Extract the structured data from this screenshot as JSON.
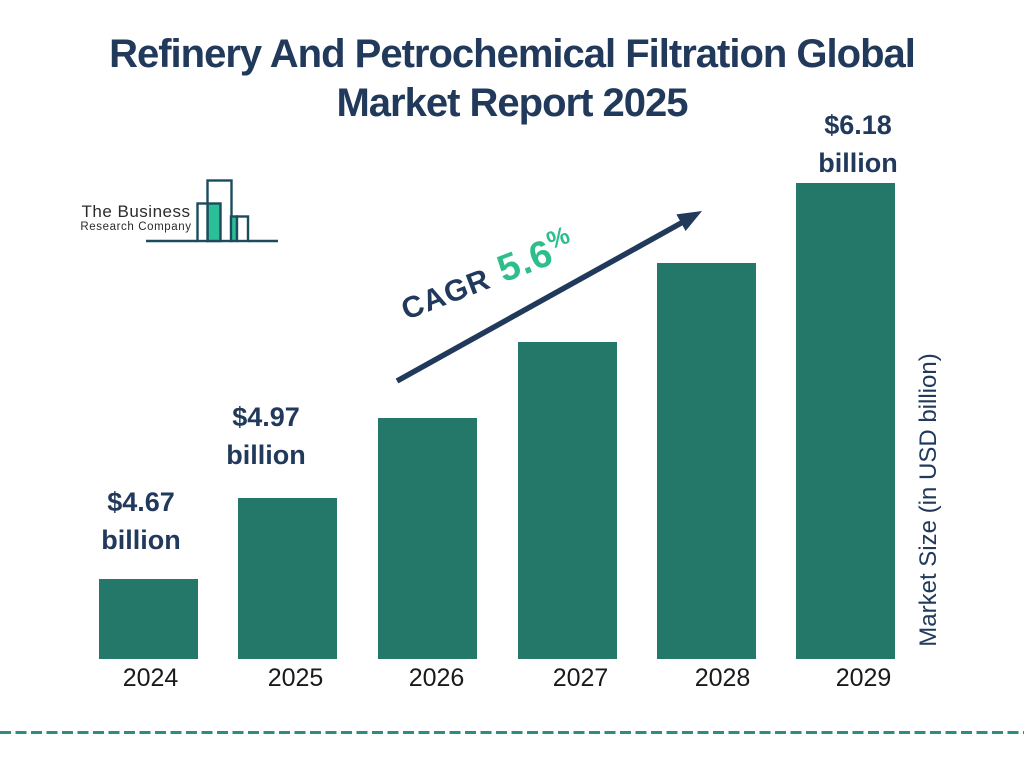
{
  "title": {
    "line1": "Refinery And Petrochemical Filtration Global",
    "line2": "Market Report 2025"
  },
  "logo": {
    "name": "The Business",
    "subname": "Research Company"
  },
  "annotation": {
    "label": "CAGR",
    "value": "5.6",
    "unit": "%"
  },
  "y_axis_label": "Market Size (in USD billion)",
  "colors": {
    "navy": "#21395b",
    "bar_teal": "#23786a",
    "accent_green": "#2ebe8c",
    "dashed_teal": "#2e8c86",
    "year_text": "#1a1a1a",
    "logo_outline": "#1d4b5e",
    "logo_teal": "#2abf97",
    "logo_text": "#2b2b2b"
  },
  "chart_data": {
    "type": "bar",
    "title": "Refinery And Petrochemical Filtration Global Market Report 2025",
    "categories": [
      "2024",
      "2025",
      "2026",
      "2027",
      "2028",
      "2029"
    ],
    "values": [
      4.67,
      4.97,
      5.25,
      5.54,
      5.85,
      6.18
    ],
    "values_unit": "USD billion",
    "ylabel": "Market Size (in USD billion)",
    "annotation": "CAGR 5.6%",
    "grid": false,
    "legend": false,
    "bars": [
      {
        "category": "2024",
        "value": 4.67,
        "label_line1": "$4.67",
        "label_line2": "billion"
      },
      {
        "category": "2025",
        "value": 4.97,
        "label_line1": "$4.97",
        "label_line2": "billion"
      },
      {
        "category": "2026",
        "value": 5.25,
        "label_line1": null,
        "label_line2": null
      },
      {
        "category": "2027",
        "value": 5.54,
        "label_line1": null,
        "label_line2": null
      },
      {
        "category": "2028",
        "value": 5.85,
        "label_line1": null,
        "label_line2": null
      },
      {
        "category": "2029",
        "value": 6.18,
        "label_line1": "$6.18",
        "label_line2": "billion"
      }
    ]
  }
}
